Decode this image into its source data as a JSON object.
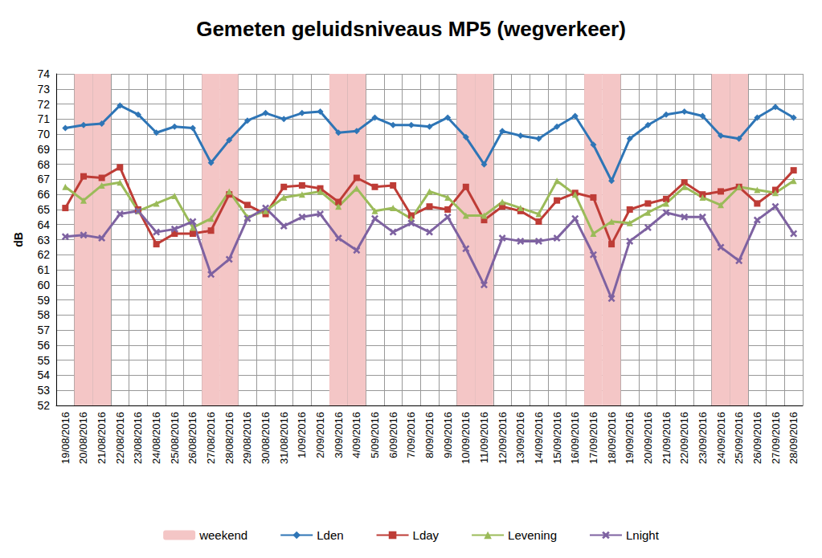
{
  "chart_data": {
    "type": "line",
    "title": "Gemeten geluidsniveaus MP5 (wegverkeer)",
    "y_label": "dB",
    "categories": [
      "19/08/2016",
      "20/08/2016",
      "21/08/2016",
      "22/08/2016",
      "23/08/2016",
      "24/08/2016",
      "25/08/2016",
      "26/08/2016",
      "27/08/2016",
      "28/08/2016",
      "29/08/2016",
      "30/08/2016",
      "31/08/2016",
      "1/09/2016",
      "2/09/2016",
      "3/09/2016",
      "4/09/2016",
      "5/09/2016",
      "6/09/2016",
      "7/09/2016",
      "8/09/2016",
      "9/09/2016",
      "10/09/2016",
      "11/09/2016",
      "12/09/2016",
      "13/09/2016",
      "14/09/2016",
      "15/09/2016",
      "16/09/2016",
      "17/09/2016",
      "18/09/2016",
      "19/09/2016",
      "20/09/2016",
      "21/09/2016",
      "22/09/2016",
      "23/09/2016",
      "24/09/2016",
      "25/09/2016",
      "26/09/2016",
      "27/09/2016",
      "28/09/2016"
    ],
    "weekend_bands": {
      "name": "weekend",
      "color": "#f4c6c6",
      "ranges": [
        [
          "20/08/2016",
          "21/08/2016"
        ],
        [
          "27/08/2016",
          "28/08/2016"
        ],
        [
          "3/09/2016",
          "4/09/2016"
        ],
        [
          "10/09/2016",
          "11/09/2016"
        ],
        [
          "17/09/2016",
          "18/09/2016"
        ],
        [
          "24/09/2016",
          "25/09/2016"
        ]
      ]
    },
    "series": [
      {
        "name": "Lden",
        "color": "#2e75b6",
        "marker": "diamond",
        "values": [
          70.4,
          70.6,
          70.7,
          71.9,
          71.3,
          70.1,
          70.5,
          70.4,
          68.1,
          69.6,
          70.9,
          71.4,
          71.0,
          71.4,
          71.5,
          70.1,
          70.2,
          71.1,
          70.6,
          70.6,
          70.5,
          71.1,
          69.8,
          68.0,
          70.2,
          69.9,
          69.7,
          70.5,
          71.2,
          69.3,
          66.9,
          69.7,
          70.6,
          71.3,
          71.5,
          71.2,
          69.9,
          69.7,
          71.1,
          71.8,
          71.1
        ]
      },
      {
        "name": "Lday",
        "color": "#be3c36",
        "marker": "square",
        "values": [
          65.1,
          67.2,
          67.1,
          67.8,
          65.0,
          62.7,
          63.4,
          63.4,
          63.6,
          66.0,
          65.3,
          64.7,
          66.5,
          66.6,
          66.4,
          65.5,
          67.1,
          66.5,
          66.6,
          64.6,
          65.2,
          65.0,
          66.5,
          64.3,
          65.2,
          64.9,
          64.2,
          65.6,
          66.1,
          65.8,
          62.7,
          65.0,
          65.4,
          65.7,
          66.8,
          66.0,
          66.2,
          66.5,
          65.4,
          66.3,
          67.6
        ]
      },
      {
        "name": "Levening",
        "color": "#9bbb59",
        "marker": "triangle",
        "values": [
          66.5,
          65.6,
          66.6,
          66.8,
          64.9,
          65.4,
          65.9,
          63.8,
          64.4,
          66.2,
          64.5,
          64.9,
          65.8,
          66.0,
          66.2,
          65.2,
          66.4,
          64.9,
          65.1,
          64.4,
          66.2,
          65.8,
          64.6,
          64.6,
          65.5,
          65.1,
          64.7,
          66.9,
          66.0,
          63.4,
          64.2,
          64.1,
          64.8,
          65.4,
          66.5,
          65.8,
          65.3,
          66.5,
          66.3,
          66.1,
          66.9
        ]
      },
      {
        "name": "Lnight",
        "color": "#7e62a1",
        "marker": "x",
        "values": [
          63.2,
          63.3,
          63.1,
          64.7,
          64.9,
          63.5,
          63.7,
          64.2,
          60.7,
          61.7,
          64.4,
          65.1,
          63.9,
          64.5,
          64.7,
          63.1,
          62.3,
          64.4,
          63.5,
          64.1,
          63.5,
          64.5,
          62.4,
          60.0,
          63.1,
          62.9,
          62.9,
          63.1,
          64.4,
          62.0,
          59.1,
          62.9,
          63.8,
          64.8,
          64.5,
          64.5,
          62.5,
          61.6,
          64.3,
          65.2,
          63.4
        ]
      }
    ],
    "ylim": [
      52,
      74
    ],
    "yticks": [
      52,
      53,
      54,
      55,
      56,
      57,
      58,
      59,
      60,
      61,
      62,
      63,
      64,
      65,
      66,
      67,
      68,
      69,
      70,
      71,
      72,
      73,
      74
    ],
    "grid": true,
    "legend": "bottom"
  }
}
